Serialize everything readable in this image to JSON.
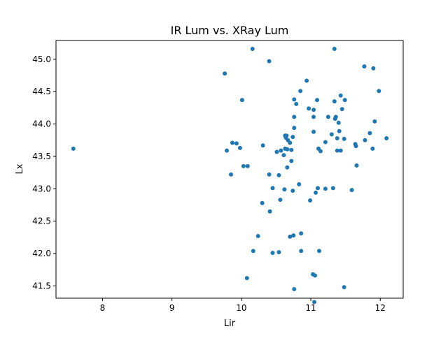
{
  "chart_data": {
    "type": "scatter",
    "title": "IR Lum vs. XRay Lum",
    "xlabel": "Lir",
    "ylabel": "Lx",
    "xlim": [
      7.33,
      12.33
    ],
    "ylim": [
      41.31,
      45.29
    ],
    "xticks": [
      8,
      9,
      10,
      11,
      12
    ],
    "yticks": [
      41.5,
      42.0,
      42.5,
      43.0,
      43.5,
      44.0,
      44.5,
      45.0
    ],
    "grid": false,
    "point_color": "#1f77b4",
    "series": [
      {
        "points": [
          [
            7.58,
            43.62
          ],
          [
            9.76,
            44.78
          ],
          [
            9.79,
            43.59
          ],
          [
            9.85,
            43.22
          ],
          [
            9.87,
            43.71
          ],
          [
            9.93,
            43.7
          ],
          [
            9.98,
            43.63
          ],
          [
            10.01,
            44.37
          ],
          [
            10.03,
            43.35
          ],
          [
            10.09,
            43.35
          ],
          [
            10.08,
            41.62
          ],
          [
            10.16,
            45.16
          ],
          [
            10.17,
            42.04
          ],
          [
            10.24,
            42.27
          ],
          [
            10.3,
            42.78
          ],
          [
            10.31,
            43.67
          ],
          [
            10.4,
            44.97
          ],
          [
            10.4,
            43.22
          ],
          [
            10.41,
            42.65
          ],
          [
            10.45,
            43.01
          ],
          [
            10.45,
            42.01
          ],
          [
            10.51,
            43.57
          ],
          [
            10.54,
            43.21
          ],
          [
            10.54,
            42.02
          ],
          [
            10.56,
            42.83
          ],
          [
            10.57,
            43.59
          ],
          [
            10.61,
            43.52
          ],
          [
            10.62,
            42.99
          ],
          [
            10.63,
            43.82
          ],
          [
            10.63,
            43.62
          ],
          [
            10.64,
            43.79
          ],
          [
            10.65,
            43.82
          ],
          [
            10.66,
            43.61
          ],
          [
            10.66,
            43.33
          ],
          [
            10.67,
            43.75
          ],
          [
            10.7,
            43.71
          ],
          [
            10.7,
            42.26
          ],
          [
            10.72,
            43.6
          ],
          [
            10.72,
            43.43
          ],
          [
            10.74,
            43.8
          ],
          [
            10.74,
            42.97
          ],
          [
            10.75,
            42.28
          ],
          [
            10.76,
            44.38
          ],
          [
            10.76,
            44.11
          ],
          [
            10.76,
            43.94
          ],
          [
            10.76,
            41.45
          ],
          [
            10.79,
            44.31
          ],
          [
            10.83,
            43.07
          ],
          [
            10.85,
            44.51
          ],
          [
            10.86,
            42.31
          ],
          [
            10.86,
            42.04
          ],
          [
            10.94,
            44.67
          ],
          [
            10.97,
            44.24
          ],
          [
            10.99,
            42.82
          ],
          [
            11.03,
            41.68
          ],
          [
            11.04,
            44.22
          ],
          [
            11.04,
            44.11
          ],
          [
            11.04,
            43.88
          ],
          [
            11.05,
            41.25
          ],
          [
            11.06,
            41.66
          ],
          [
            11.07,
            42.94
          ],
          [
            11.09,
            44.37
          ],
          [
            11.1,
            43.01
          ],
          [
            11.11,
            43.62
          ],
          [
            11.12,
            42.04
          ],
          [
            11.14,
            43.58
          ],
          [
            11.21,
            43.72
          ],
          [
            11.21,
            43.0
          ],
          [
            11.25,
            44.11
          ],
          [
            11.3,
            43.84
          ],
          [
            11.32,
            43.01
          ],
          [
            11.34,
            45.16
          ],
          [
            11.34,
            44.35
          ],
          [
            11.35,
            44.08
          ],
          [
            11.36,
            44.11
          ],
          [
            11.38,
            43.59
          ],
          [
            11.38,
            43.78
          ],
          [
            11.4,
            44.02
          ],
          [
            11.41,
            43.89
          ],
          [
            11.43,
            44.44
          ],
          [
            11.43,
            43.59
          ],
          [
            11.45,
            44.23
          ],
          [
            11.48,
            43.77
          ],
          [
            11.49,
            44.37
          ],
          [
            11.48,
            41.48
          ],
          [
            11.59,
            42.98
          ],
          [
            11.64,
            43.69
          ],
          [
            11.65,
            43.66
          ],
          [
            11.66,
            43.36
          ],
          [
            11.77,
            44.89
          ],
          [
            11.78,
            43.75
          ],
          [
            11.85,
            43.86
          ],
          [
            11.89,
            43.62
          ],
          [
            11.9,
            44.86
          ],
          [
            11.92,
            44.04
          ],
          [
            11.98,
            44.51
          ],
          [
            12.09,
            43.78
          ]
        ]
      }
    ]
  }
}
